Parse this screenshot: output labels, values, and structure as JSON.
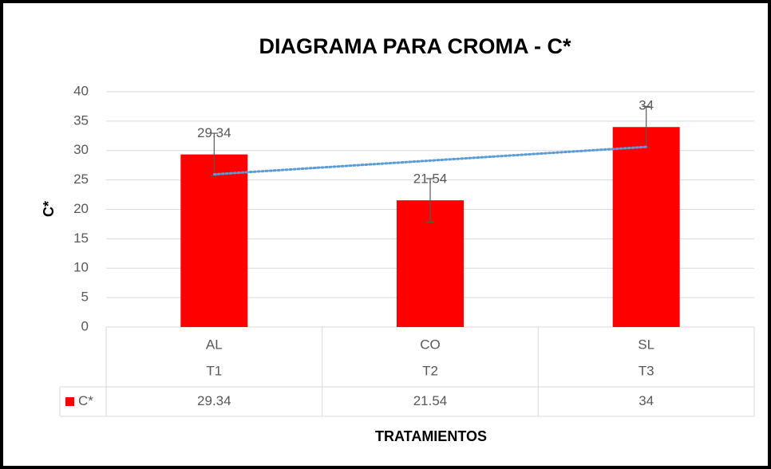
{
  "chart_data": {
    "type": "bar",
    "title": "DIAGRAMA PARA CROMA - C*",
    "y_label": "C*",
    "x_label": "TRATAMIENTOS",
    "categories": [
      "AL",
      "CO",
      "SL"
    ],
    "categories_level2": [
      "T1",
      "T2",
      "T3"
    ],
    "series": [
      {
        "name": "C*",
        "color": "#ff0000",
        "values": [
          29.34,
          21.54,
          34
        ],
        "errors": [
          3.6,
          3.7,
          3.5
        ]
      }
    ],
    "trendline": "linear",
    "trendline_color": "#5b9bd5",
    "ylim": [
      0,
      40
    ],
    "yticks": [
      0,
      5,
      10,
      15,
      20,
      25,
      30,
      35,
      40
    ],
    "grid": true
  }
}
